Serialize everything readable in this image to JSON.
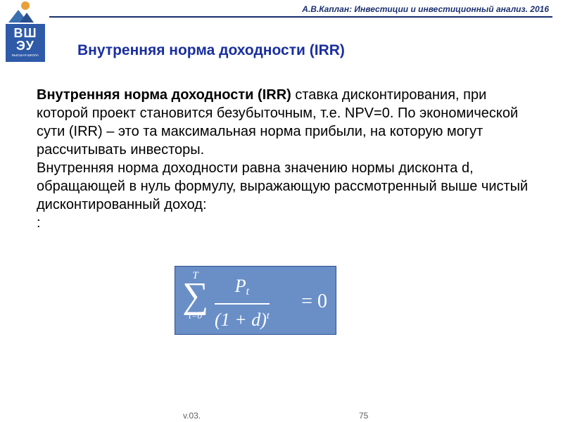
{
  "header": {
    "caption": "А.В.Каплан: Инвестиции и инвестиционный анализ. 2016",
    "line_color": "#1a2f6f"
  },
  "logo": {
    "top_text": "ВШ",
    "mid_text": "ЭУ",
    "sub_text": "ВЫСШАЯ ШКОЛА",
    "bg_color": "#2e5aa8"
  },
  "title": {
    "text": "Внутренняя норма доходности (IRR)",
    "color": "#1a2f9f",
    "fontsize": 21
  },
  "body": {
    "lead_bold": "Внутренняя норма доходности (IRR)",
    "para1_rest": "  ставка дисконтирования, при которой проект становится безубыточным, т.е. NPV=0. По экономической сути (IRR) – это та максимальная норма прибыли, на которую могут рассчитывать инвесторы.",
    "para2": "Внутренняя норма доходности равна значению нормы дисконта d, обращающей в нуль формулу, выражающую рассмотренный выше чистый дисконтированный доход:",
    "trailing_colon": ":",
    "fontsize": 20,
    "color": "#000000"
  },
  "formula": {
    "box_bg": "#6a8fc7",
    "box_border": "#2a4f8f",
    "text_color": "#ffffff",
    "upper_limit": "T",
    "lower_limit": "t=0",
    "numerator_base": "P",
    "numerator_sub": "t",
    "denominator": "(1 + d)",
    "denominator_sup": "t",
    "rhs": "= 0"
  },
  "footer": {
    "version": "v.03.",
    "page": "75",
    "color": "#606060"
  }
}
